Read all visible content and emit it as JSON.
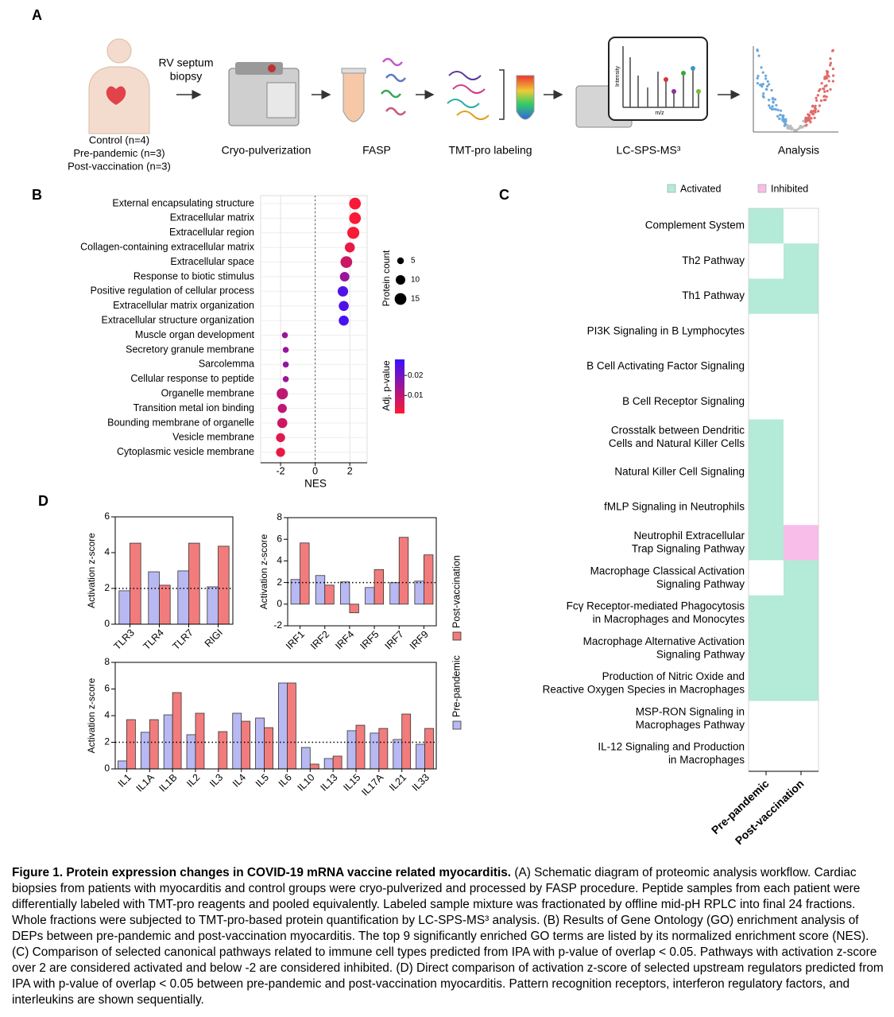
{
  "workflow": {
    "panel": "A",
    "groups": [
      "Control (n=4)",
      "Pre-pandemic (n=3)",
      "Post-vaccination (n=3)"
    ],
    "sample": "RV septum\nbiopsy",
    "steps": [
      "Cryo-pulverization",
      "FASP",
      "TMT-pro labeling",
      "LC-SPS-MS³",
      "Analysis"
    ],
    "spectrum_axes": [
      "Intensity",
      "m/z"
    ]
  },
  "chart_data": [
    {
      "type": "dot",
      "panel": "B",
      "xlabel": "NES",
      "categories": [
        "External encapsulating structure",
        "Extracellular matrix",
        "Extracellular region",
        "Collagen-containing extracellular matrix",
        "Extracellular space",
        "Response to biotic stimulus",
        "Positive regulation of cellular process",
        "Extracellular matrix organization",
        "Extracellular structure organization",
        "Muscle organ development",
        "Secretory granule membrane",
        "Sarcolemma",
        "Cellular response to peptide",
        "Organelle membrane",
        "Transition metal ion binding",
        "Bounding membrane of organelle",
        "Vesicle membrane",
        "Cytoplasmic vesicle membrane"
      ],
      "values": [
        2.3,
        2.3,
        2.2,
        2.0,
        1.8,
        1.7,
        1.6,
        1.65,
        1.65,
        -1.75,
        -1.7,
        -1.7,
        -1.7,
        -1.9,
        -1.9,
        -1.9,
        -2.0,
        -2.0
      ],
      "sizes": [
        15,
        15,
        16,
        11,
        15,
        10,
        12,
        11,
        11,
        4,
        4,
        4,
        4,
        14,
        9,
        11,
        9,
        9
      ],
      "pvalues": [
        0.002,
        0.002,
        0.002,
        0.004,
        0.008,
        0.015,
        0.025,
        0.025,
        0.026,
        0.015,
        0.015,
        0.016,
        0.015,
        0.01,
        0.01,
        0.008,
        0.005,
        0.004
      ],
      "xlim": [
        -3.15,
        3.0
      ],
      "xticks": [
        -2,
        0,
        2
      ],
      "grid": true,
      "size_title": "Protein count",
      "size_legend": [
        5,
        10,
        15
      ],
      "color_title": "Adj. p-value",
      "clim": [
        0.001,
        0.028
      ],
      "cticks": [
        0.01,
        0.02
      ],
      "color_low": "#ff1a2e",
      "color_high": "#3a10ff"
    },
    {
      "type": "heatmap",
      "panel": "C",
      "legend": [
        {
          "name": "Activated",
          "color": "#b3ead8"
        },
        {
          "name": "Inhibited",
          "color": "#f9bde9"
        }
      ],
      "columns": [
        "Pre-pandemic",
        "Post-vaccination"
      ],
      "rows": [
        "Complement System",
        "Th2 Pathway",
        "Th1 Pathway",
        "PI3K Signaling in B Lymphocytes",
        "B Cell Activating Factor Signaling",
        "B Cell Receptor Signaling",
        "Crosstalk between Dendritic\nCells and Natural Killer Cells",
        "Natural Killer Cell Signaling",
        "fMLP Signaling in Neutrophils",
        "Neutrophil Extracellular\nTrap Signaling Pathway",
        "Macrophage Classical Activation\nSignaling Pathway",
        "Fcγ Receptor-mediated Phagocytosis\nin Macrophages and Monocytes",
        "Macrophage Alternative Activation\nSignaling Pathway",
        "Production of Nitric Oxide and\nReactive Oxygen Species in Macrophages",
        "MSP-RON Signaling in\nMacrophages Pathway",
        "IL-12 Signaling and Production\nin Macrophages"
      ],
      "values": [
        [
          1,
          0
        ],
        [
          0,
          1
        ],
        [
          1,
          1
        ],
        [
          0,
          0
        ],
        [
          0,
          0
        ],
        [
          0,
          0
        ],
        [
          1,
          0
        ],
        [
          1,
          0
        ],
        [
          1,
          0
        ],
        [
          1,
          -1
        ],
        [
          0,
          1
        ],
        [
          1,
          1
        ],
        [
          1,
          1
        ],
        [
          1,
          1
        ],
        [
          0,
          0
        ],
        [
          0,
          0
        ]
      ]
    },
    {
      "type": "bar",
      "panel": "D",
      "ylabel": "Activation z-score",
      "threshold": 2,
      "legend": [
        {
          "name": "Pre-pandemic",
          "color": "#b8b9f2"
        },
        {
          "name": "Post-vaccination",
          "color": "#f27c7c"
        }
      ],
      "subplots": [
        {
          "categories": [
            "TLR3",
            "TLR4",
            "TLR7",
            "RIGI"
          ],
          "ylim": [
            0,
            6
          ],
          "yticks": [
            0,
            2,
            4,
            6
          ],
          "series": [
            {
              "values": [
                1.87,
                2.93,
                2.98,
                2.09
              ]
            },
            {
              "values": [
                4.53,
                2.18,
                4.53,
                4.36
              ]
            }
          ]
        },
        {
          "categories": [
            "IRF1",
            "IRF2",
            "IRF4",
            "IRF5",
            "IRF7",
            "IRF9"
          ],
          "ylim": [
            -2,
            8
          ],
          "yticks": [
            -2,
            0,
            2,
            4,
            6,
            8
          ],
          "series": [
            {
              "values": [
                2.28,
                2.65,
                2.06,
                1.54,
                1.99,
                2.13
              ]
            },
            {
              "values": [
                5.66,
                1.76,
                -0.8,
                3.2,
                6.18,
                4.56
              ]
            }
          ]
        },
        {
          "categories": [
            "IL1",
            "IL1A",
            "IL1B",
            "IL2",
            "IL3",
            "IL4",
            "IL5",
            "IL6",
            "IL10",
            "IL13",
            "IL15",
            "IL17A",
            "IL21",
            "IL33"
          ],
          "ylim": [
            0,
            8
          ],
          "yticks": [
            0,
            2,
            4,
            6,
            8
          ],
          "series": [
            {
              "values": [
                0.6,
                2.75,
                4.06,
                2.57,
                null,
                4.18,
                3.82,
                6.45,
                1.61,
                0.78,
                2.87,
                2.69,
                2.21,
                1.85
              ]
            },
            {
              "values": [
                3.7,
                3.7,
                5.73,
                4.18,
                2.8,
                3.58,
                3.1,
                6.45,
                0.36,
                0.96,
                3.28,
                3.04,
                4.12,
                3.04
              ]
            }
          ]
        }
      ]
    }
  ],
  "caption": {
    "title": "Figure 1. Protein expression changes in COVID-19 mRNA vaccine related myocarditis.",
    "text": "(A) Schematic diagram of proteomic analysis workflow. Cardiac biopsies from patients with myocarditis and control groups were cryo-pulverized and processed by FASP procedure. Peptide samples from each patient were differentially labeled with TMT-pro reagents and pooled equivalently. Labeled sample mixture was fractionated by offline mid-pH RPLC into final 24 fractions. Whole fractions were subjected to TMT-pro-based protein quantification by LC-SPS-MS³ analysis. (B) Results of Gene Ontology (GO) enrichment analysis of DEPs between pre-pandemic and post-vaccination myocarditis. The top 9 significantly enriched GO terms are listed by its normalized enrichment score (NES). (C) Comparison of selected canonical pathways related to immune cell types predicted from IPA with p-value of overlap < 0.05. Pathways with activation z-score over 2 are considered activated and below -2 are considered inhibited. (D) Direct comparison of activation z-score of selected upstream regulators predicted from IPA with p-value of overlap < 0.05 between pre-pandemic and post-vaccination myocarditis. Pattern recognition receptors, interferon regulatory factors, and interleukins are shown sequentially."
  }
}
